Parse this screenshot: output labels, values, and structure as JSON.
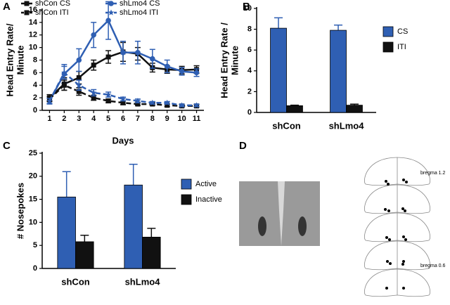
{
  "chart_data": [
    {
      "type": "line",
      "panel": "A",
      "xlabel": "Days",
      "ylabel": [
        "Head Entry Rate/",
        "Minute"
      ],
      "x": [
        1,
        2,
        3,
        4,
        5,
        6,
        7,
        8,
        9,
        10,
        11
      ],
      "xlim": [
        0.5,
        11.5
      ],
      "xticks": [
        1,
        2,
        3,
        4,
        5,
        6,
        7,
        8,
        9,
        10,
        11
      ],
      "ylim": [
        0,
        16
      ],
      "yticks": [
        0,
        2,
        4,
        6,
        8,
        10,
        12,
        14,
        16
      ],
      "annotations": [
        {
          "text": "*",
          "x": 5
        }
      ],
      "series": [
        {
          "name": "shCon CS",
          "color": "#111111",
          "marker": "square",
          "dashed": false,
          "values": [
            2.0,
            4.2,
            5.2,
            7.2,
            8.5,
            9.3,
            9.0,
            6.8,
            6.5,
            6.4,
            6.5
          ],
          "errors": [
            0.5,
            1.0,
            1.0,
            0.8,
            1.0,
            1.5,
            1.0,
            0.7,
            0.6,
            0.6,
            0.6
          ]
        },
        {
          "name": "shLmo4 CS",
          "color": "#2f5fb3",
          "marker": "circle",
          "dashed": false,
          "values": [
            1.5,
            5.8,
            8.0,
            12.0,
            14.3,
            9.2,
            9.2,
            8.2,
            7.0,
            6.2,
            6.0
          ],
          "errors": [
            0.5,
            1.5,
            1.8,
            2.0,
            3.0,
            1.8,
            1.8,
            1.5,
            1.0,
            0.6,
            0.6
          ]
        },
        {
          "name": "shCon ITI",
          "color": "#111111",
          "marker": "square",
          "dashed": true,
          "values": [
            1.8,
            4.0,
            3.0,
            2.0,
            1.5,
            1.2,
            1.0,
            1.0,
            0.8,
            0.7,
            0.7
          ],
          "errors": [
            0.4,
            0.8,
            0.6,
            0.4,
            0.3,
            0.3,
            0.2,
            0.2,
            0.2,
            0.2,
            0.2
          ]
        },
        {
          "name": "shLmo4 ITI",
          "color": "#2f5fb3",
          "marker": "star",
          "dashed": true,
          "values": [
            1.5,
            6.0,
            4.0,
            2.8,
            2.5,
            1.8,
            1.5,
            1.2,
            1.2,
            0.8,
            0.8
          ],
          "errors": [
            0.4,
            1.0,
            0.8,
            0.5,
            0.4,
            0.3,
            0.3,
            0.2,
            0.2,
            0.2,
            0.2
          ]
        }
      ]
    },
    {
      "type": "bar",
      "panel": "B",
      "ylabel": [
        "Head Entry Rate /",
        "Minute"
      ],
      "categories": [
        "shCon",
        "shLmo4"
      ],
      "ylim": [
        0,
        10
      ],
      "yticks": [
        0,
        2,
        4,
        6,
        8,
        10
      ],
      "series": [
        {
          "name": "CS",
          "color": "#2f5fb3",
          "values": [
            8.1,
            7.9
          ],
          "errors": [
            1.0,
            0.5
          ]
        },
        {
          "name": "ITI",
          "color": "#111111",
          "values": [
            0.65,
            0.7
          ],
          "errors": [
            0.05,
            0.1
          ]
        }
      ]
    },
    {
      "type": "bar",
      "panel": "C",
      "ylabel": [
        "# Nosepokes"
      ],
      "categories": [
        "shCon",
        "shLmo4"
      ],
      "ylim": [
        0,
        25
      ],
      "yticks": [
        0,
        5,
        10,
        15,
        20,
        25
      ],
      "series": [
        {
          "name": "Active",
          "color": "#2f5fb3",
          "values": [
            15.5,
            18.1
          ],
          "errors": [
            5.5,
            4.5
          ]
        },
        {
          "name": "Inactive",
          "color": "#111111",
          "values": [
            5.8,
            6.8
          ],
          "errors": [
            1.4,
            1.9
          ]
        }
      ]
    }
  ],
  "panel_d": {
    "panel": "D",
    "annotations": [
      "bregma 1.2",
      "bregma 0.6"
    ]
  }
}
